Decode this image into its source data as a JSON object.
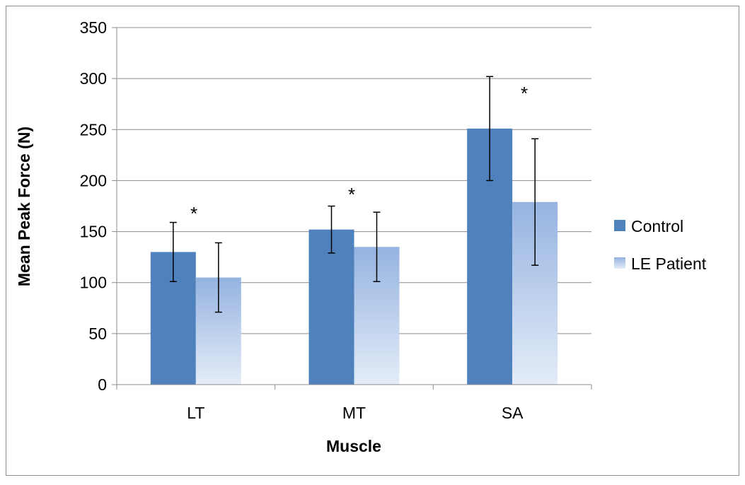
{
  "chart_data": {
    "type": "bar",
    "title": "",
    "xlabel": "Muscle",
    "ylabel": "Mean Peak Force (N)",
    "categories": [
      "LT",
      "MT",
      "SA"
    ],
    "ylim": [
      0,
      350
    ],
    "yticks": [
      0,
      50,
      100,
      150,
      200,
      250,
      300,
      350
    ],
    "grid": true,
    "legend_position": "right",
    "series": [
      {
        "name": "Control",
        "color": "#4f81bd",
        "values": [
          130,
          152,
          251
        ],
        "error": [
          29,
          23,
          51
        ]
      },
      {
        "name": "LE Patient",
        "color_top": "#95b3e0",
        "color_bottom": "#e4ecf8",
        "values": [
          105,
          135,
          179
        ],
        "error": [
          34,
          34,
          62
        ]
      }
    ],
    "annotations": [
      {
        "text": "*",
        "category": "LT"
      },
      {
        "text": "*",
        "category": "MT"
      },
      {
        "text": "*",
        "category": "SA"
      }
    ]
  }
}
